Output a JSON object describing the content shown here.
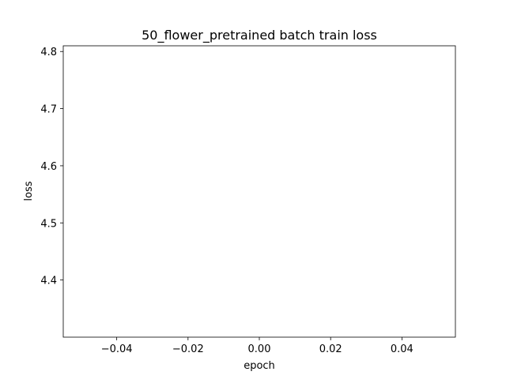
{
  "chart_data": {
    "type": "line",
    "title": "50_flower_pretrained batch train loss",
    "xlabel": "epoch",
    "ylabel": "loss",
    "xlim": [
      -0.055,
      0.055
    ],
    "ylim": [
      4.3,
      4.81
    ],
    "x_ticks": [
      -0.04,
      -0.02,
      0.0,
      0.02,
      0.04
    ],
    "x_tick_labels": [
      "−0.04",
      "−0.02",
      "0.00",
      "0.02",
      "0.04"
    ],
    "y_ticks": [
      4.4,
      4.5,
      4.6,
      4.7,
      4.8
    ],
    "y_tick_labels": [
      "4.4",
      "4.5",
      "4.6",
      "4.7",
      "4.8"
    ],
    "grid": false,
    "series": [
      {
        "x": [],
        "y": [],
        "color": "#1f77b4"
      }
    ]
  }
}
